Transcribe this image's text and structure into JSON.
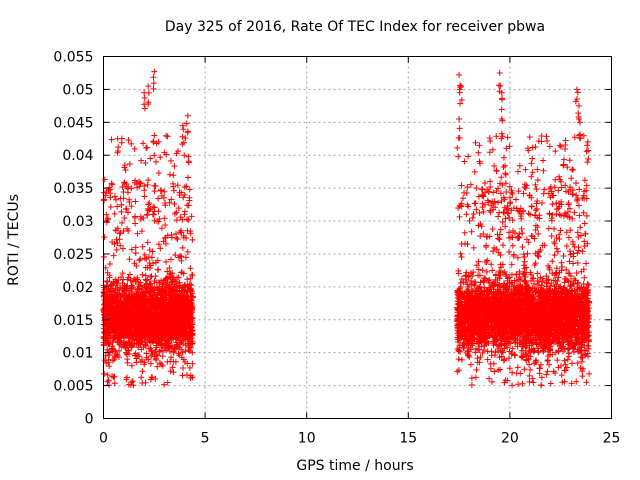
{
  "chart_data": {
    "type": "scatter",
    "title": "Day 325 of 2016, Rate Of TEC Index for receiver pbwa",
    "xlabel": "GPS time / hours",
    "ylabel": "ROTI / TECUs",
    "xlim": [
      0,
      25
    ],
    "ylim": [
      0,
      0.055
    ],
    "xticks": [
      "0",
      "5",
      "10",
      "15",
      "20",
      "25"
    ],
    "yticks": [
      "0",
      "0.005",
      "0.01",
      "0.015",
      "0.02",
      "0.025",
      "0.03",
      "0.035",
      "0.04",
      "0.045",
      "0.05",
      "0.055"
    ],
    "grid": true,
    "marker": "+",
    "color": "#ff0000",
    "series": [
      {
        "name": "ROTI",
        "segments": [
          {
            "x_range": [
              0.0,
              4.4
            ],
            "y_typical": [
              0.005,
              0.025
            ],
            "y_min": 0.003,
            "y_max": 0.0527
          },
          {
            "x_range": [
              17.4,
              23.9
            ],
            "y_typical": [
              0.005,
              0.025
            ],
            "y_min": 0.004,
            "y_max": 0.0525
          }
        ],
        "peaks": [
          {
            "x": 0.7,
            "y": 0.0425
          },
          {
            "x": 1.05,
            "y": 0.0385
          },
          {
            "x": 2.0,
            "y": 0.0495
          },
          {
            "x": 2.2,
            "y": 0.0505
          },
          {
            "x": 2.5,
            "y": 0.0527
          },
          {
            "x": 2.5,
            "y": 0.043
          },
          {
            "x": 3.9,
            "y": 0.0445
          },
          {
            "x": 4.15,
            "y": 0.046
          },
          {
            "x": 17.5,
            "y": 0.0522
          },
          {
            "x": 17.6,
            "y": 0.0505
          },
          {
            "x": 17.5,
            "y": 0.0455
          },
          {
            "x": 18.5,
            "y": 0.0415
          },
          {
            "x": 19.5,
            "y": 0.0525
          },
          {
            "x": 19.6,
            "y": 0.0495
          },
          {
            "x": 19.6,
            "y": 0.0455
          },
          {
            "x": 21.1,
            "y": 0.0395
          },
          {
            "x": 23.3,
            "y": 0.05
          },
          {
            "x": 23.4,
            "y": 0.0475
          },
          {
            "x": 23.4,
            "y": 0.0455
          },
          {
            "x": 23.8,
            "y": 0.0415
          }
        ]
      }
    ]
  }
}
